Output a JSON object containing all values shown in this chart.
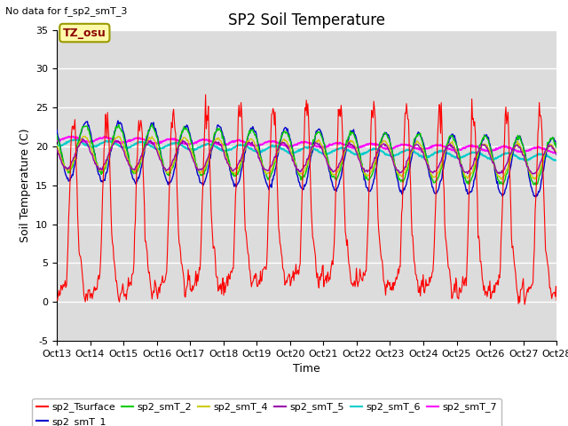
{
  "title": "SP2 Soil Temperature",
  "subtitle": "No data for f_sp2_smT_3",
  "ylabel": "Soil Temperature (C)",
  "xlabel": "Time",
  "timezone_label": "TZ_osu",
  "ylim": [
    -5,
    35
  ],
  "yticks": [
    -5,
    0,
    5,
    10,
    15,
    20,
    25,
    30,
    35
  ],
  "n_days": 15,
  "x_tick_labels": [
    "Oct 13",
    "Oct 14",
    "Oct 15",
    "Oct 16",
    "Oct 17",
    "Oct 18",
    "Oct 19",
    "Oct 20",
    "Oct 21",
    "Oct 22",
    "Oct 23",
    "Oct 24",
    "Oct 25",
    "Oct 26",
    "Oct 27",
    "Oct 28"
  ],
  "series_colors": {
    "sp2_Tsurface": "#FF0000",
    "sp2_smT_1": "#0000CC",
    "sp2_smT_2": "#00CC00",
    "sp2_smT_4": "#CCCC00",
    "sp2_smT_5": "#9900AA",
    "sp2_smT_6": "#00CCCC",
    "sp2_smT_7": "#FF00FF"
  },
  "plot_bg_color": "#DCDCDC",
  "fig_bg_color": "#FFFFFF",
  "grid_color": "#FFFFFF",
  "title_fontsize": 12,
  "axis_fontsize": 9,
  "tick_fontsize": 8,
  "legend_fontsize": 8
}
